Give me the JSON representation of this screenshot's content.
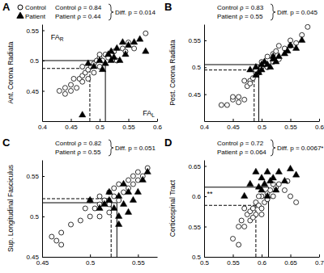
{
  "chart_data": [
    {
      "type": "scatter",
      "title": "A",
      "y_label": "Ant. Corona Radiata",
      "xlim": [
        0.4,
        0.6
      ],
      "xticks": [
        0.4,
        0.45,
        0.5,
        0.55,
        0.6
      ],
      "ylim": [
        0.4,
        0.56
      ],
      "yticks": [
        0.45,
        0.5,
        0.55
      ],
      "legend": "top-left",
      "stats": {
        "control": "Control ρ = 0.84",
        "patient": "Patient ρ = 0.44",
        "diff": "Diff. p = 0.014"
      },
      "annotations": [
        {
          "text": "FA",
          "sub": "R",
          "x": 0.415,
          "y": 0.535
        },
        {
          "text": "FA",
          "sub": "L",
          "x": 0.575,
          "y": 0.41
        }
      ],
      "series": [
        {
          "name": "Control",
          "color": "#000000",
          "marker": "circle",
          "line_style": "dashed",
          "mean_x": 0.483,
          "mean_y": 0.487,
          "x": [
            0.43,
            0.44,
            0.44,
            0.45,
            0.45,
            0.455,
            0.46,
            0.465,
            0.47,
            0.47,
            0.475,
            0.48,
            0.48,
            0.485,
            0.49,
            0.49,
            0.495,
            0.5,
            0.5,
            0.505,
            0.51,
            0.515,
            0.52,
            0.525,
            0.53,
            0.54,
            0.545,
            0.55,
            0.56,
            0.58,
            0.47,
            0.5
          ],
          "values": [
            0.45,
            0.445,
            0.455,
            0.46,
            0.45,
            0.47,
            0.455,
            0.47,
            0.475,
            0.465,
            0.48,
            0.485,
            0.47,
            0.49,
            0.48,
            0.495,
            0.5,
            0.49,
            0.505,
            0.5,
            0.51,
            0.505,
            0.51,
            0.515,
            0.5,
            0.52,
            0.515,
            0.53,
            0.52,
            0.545,
            0.49,
            0.51
          ]
        },
        {
          "name": "Patient",
          "color": "#000000",
          "marker": "triangle",
          "line_style": "solid",
          "mean_x": 0.51,
          "mean_y": 0.5,
          "x": [
            0.47,
            0.48,
            0.49,
            0.5,
            0.505,
            0.51,
            0.515,
            0.52,
            0.52,
            0.525,
            0.53,
            0.535,
            0.54,
            0.545,
            0.55,
            0.56,
            0.57,
            0.58
          ],
          "values": [
            0.41,
            0.495,
            0.49,
            0.5,
            0.485,
            0.495,
            0.51,
            0.5,
            0.515,
            0.505,
            0.52,
            0.5,
            0.53,
            0.51,
            0.525,
            0.53,
            0.535,
            0.515
          ]
        }
      ]
    },
    {
      "type": "scatter",
      "title": "B",
      "y_label": "Post. Corona Radiata",
      "xlim": [
        0.4,
        0.6
      ],
      "xticks": [
        0.4,
        0.45,
        0.5,
        0.55,
        0.6
      ],
      "ylim": [
        0.4,
        0.58
      ],
      "yticks": [
        0.45,
        0.5,
        0.55
      ],
      "stats": {
        "control": "Control ρ = 0.83",
        "patient": "Patient ρ = 0.55",
        "diff": "Diff. p = 0.045"
      },
      "series": [
        {
          "color": "#000000",
          "marker": "circle",
          "line_style": "dashed",
          "mean_x": 0.487,
          "mean_y": 0.495,
          "x": [
            0.43,
            0.44,
            0.45,
            0.45,
            0.46,
            0.46,
            0.47,
            0.47,
            0.475,
            0.48,
            0.48,
            0.485,
            0.49,
            0.49,
            0.495,
            0.5,
            0.5,
            0.505,
            0.51,
            0.51,
            0.52,
            0.52,
            0.525,
            0.53,
            0.53,
            0.54,
            0.55,
            0.55,
            0.56,
            0.58,
            0.57
          ],
          "values": [
            0.43,
            0.43,
            0.44,
            0.445,
            0.445,
            0.435,
            0.44,
            0.475,
            0.465,
            0.475,
            0.47,
            0.48,
            0.49,
            0.495,
            0.49,
            0.5,
            0.51,
            0.505,
            0.5,
            0.52,
            0.51,
            0.525,
            0.53,
            0.515,
            0.54,
            0.535,
            0.54,
            0.55,
            0.545,
            0.575,
            0.56
          ]
        },
        {
          "color": "#000000",
          "marker": "triangle",
          "line_style": "solid",
          "mean_x": 0.495,
          "mean_y": 0.505,
          "x": [
            0.48,
            0.49,
            0.495,
            0.5,
            0.5,
            0.505,
            0.51,
            0.515,
            0.52,
            0.52,
            0.525,
            0.53,
            0.54,
            0.545,
            0.55,
            0.56,
            0.57,
            0.49
          ],
          "values": [
            0.495,
            0.5,
            0.49,
            0.495,
            0.505,
            0.51,
            0.505,
            0.5,
            0.515,
            0.52,
            0.51,
            0.52,
            0.525,
            0.53,
            0.54,
            0.535,
            0.55,
            0.485
          ]
        }
      ]
    },
    {
      "type": "scatter",
      "title": "C",
      "y_label": "Sup. Longitudinal Fasciculus",
      "xlim": [
        0.45,
        0.57
      ],
      "xticks": [
        0.45,
        0.5,
        0.55
      ],
      "ylim": [
        0.45,
        0.57
      ],
      "yticks": [
        0.45,
        0.5,
        0.55
      ],
      "stats": {
        "control": "Control ρ = 0.82",
        "patient": "Patient ρ = 0.55",
        "diff": "Diff. p = 0.051"
      },
      "series": [
        {
          "color": "#000000",
          "marker": "circle",
          "line_style": "dashed",
          "mean_x": 0.522,
          "mean_y": 0.522,
          "x": [
            0.46,
            0.465,
            0.47,
            0.47,
            0.48,
            0.49,
            0.495,
            0.5,
            0.5,
            0.505,
            0.51,
            0.51,
            0.515,
            0.52,
            0.52,
            0.525,
            0.525,
            0.53,
            0.53,
            0.535,
            0.54,
            0.54,
            0.545,
            0.545,
            0.55,
            0.55,
            0.555,
            0.56,
            0.52,
            0.51
          ],
          "values": [
            0.475,
            0.47,
            0.465,
            0.48,
            0.49,
            0.495,
            0.51,
            0.5,
            0.52,
            0.51,
            0.515,
            0.525,
            0.52,
            0.53,
            0.515,
            0.535,
            0.525,
            0.52,
            0.54,
            0.53,
            0.545,
            0.535,
            0.55,
            0.54,
            0.555,
            0.545,
            0.55,
            0.56,
            0.505,
            0.5
          ]
        },
        {
          "color": "#000000",
          "marker": "triangle",
          "line_style": "solid",
          "mean_x": 0.528,
          "mean_y": 0.517,
          "x": [
            0.5,
            0.51,
            0.515,
            0.52,
            0.525,
            0.53,
            0.53,
            0.535,
            0.54,
            0.54,
            0.545,
            0.55,
            0.555,
            0.56,
            0.53,
            0.52,
            0.535
          ],
          "values": [
            0.52,
            0.51,
            0.515,
            0.52,
            0.51,
            0.5,
            0.525,
            0.515,
            0.53,
            0.505,
            0.52,
            0.53,
            0.545,
            0.555,
            0.49,
            0.53,
            0.54
          ]
        }
      ]
    },
    {
      "type": "scatter",
      "title": "D",
      "y_label": "Corticospinal Tract",
      "xlim": [
        0.5,
        0.7
      ],
      "xticks": [
        0.5,
        0.55,
        0.6,
        0.65,
        0.7
      ],
      "ylim": [
        0.5,
        0.66
      ],
      "yticks": [
        0.5,
        0.55,
        0.6,
        0.65
      ],
      "stats": {
        "control": "Control ρ = 0.72",
        "patient": "Patient ρ = 0.064",
        "diff": "Diff. p = 0.0067*"
      },
      "annotations": [
        {
          "text": "**",
          "x": 0.505,
          "y": 0.6
        }
      ],
      "series": [
        {
          "color": "#000000",
          "marker": "circle",
          "line_style": "dashed",
          "mean_x": 0.59,
          "mean_y": 0.585,
          "x": [
            0.55,
            0.56,
            0.56,
            0.565,
            0.57,
            0.575,
            0.58,
            0.58,
            0.585,
            0.59,
            0.59,
            0.595,
            0.6,
            0.6,
            0.605,
            0.61,
            0.61,
            0.615,
            0.62,
            0.625,
            0.63,
            0.64,
            0.645,
            0.65,
            0.66,
            0.6,
            0.585,
            0.62,
            0.57,
            0.595
          ],
          "values": [
            0.53,
            0.55,
            0.52,
            0.56,
            0.55,
            0.57,
            0.575,
            0.56,
            0.58,
            0.57,
            0.59,
            0.585,
            0.6,
            0.58,
            0.59,
            0.605,
            0.595,
            0.61,
            0.6,
            0.615,
            0.62,
            0.61,
            0.625,
            0.6,
            0.59,
            0.57,
            0.565,
            0.62,
            0.58,
            0.6
          ]
        },
        {
          "color": "#000000",
          "marker": "triangle",
          "line_style": "solid",
          "mean_x": 0.612,
          "mean_y": 0.615,
          "x": [
            0.57,
            0.58,
            0.59,
            0.6,
            0.6,
            0.605,
            0.61,
            0.615,
            0.62,
            0.625,
            0.63,
            0.64,
            0.65,
            0.66,
            0.595,
            0.61
          ],
          "values": [
            0.6,
            0.62,
            0.64,
            0.63,
            0.61,
            0.62,
            0.6,
            0.625,
            0.63,
            0.61,
            0.64,
            0.625,
            0.645,
            0.635,
            0.615,
            0.64
          ]
        }
      ]
    }
  ]
}
